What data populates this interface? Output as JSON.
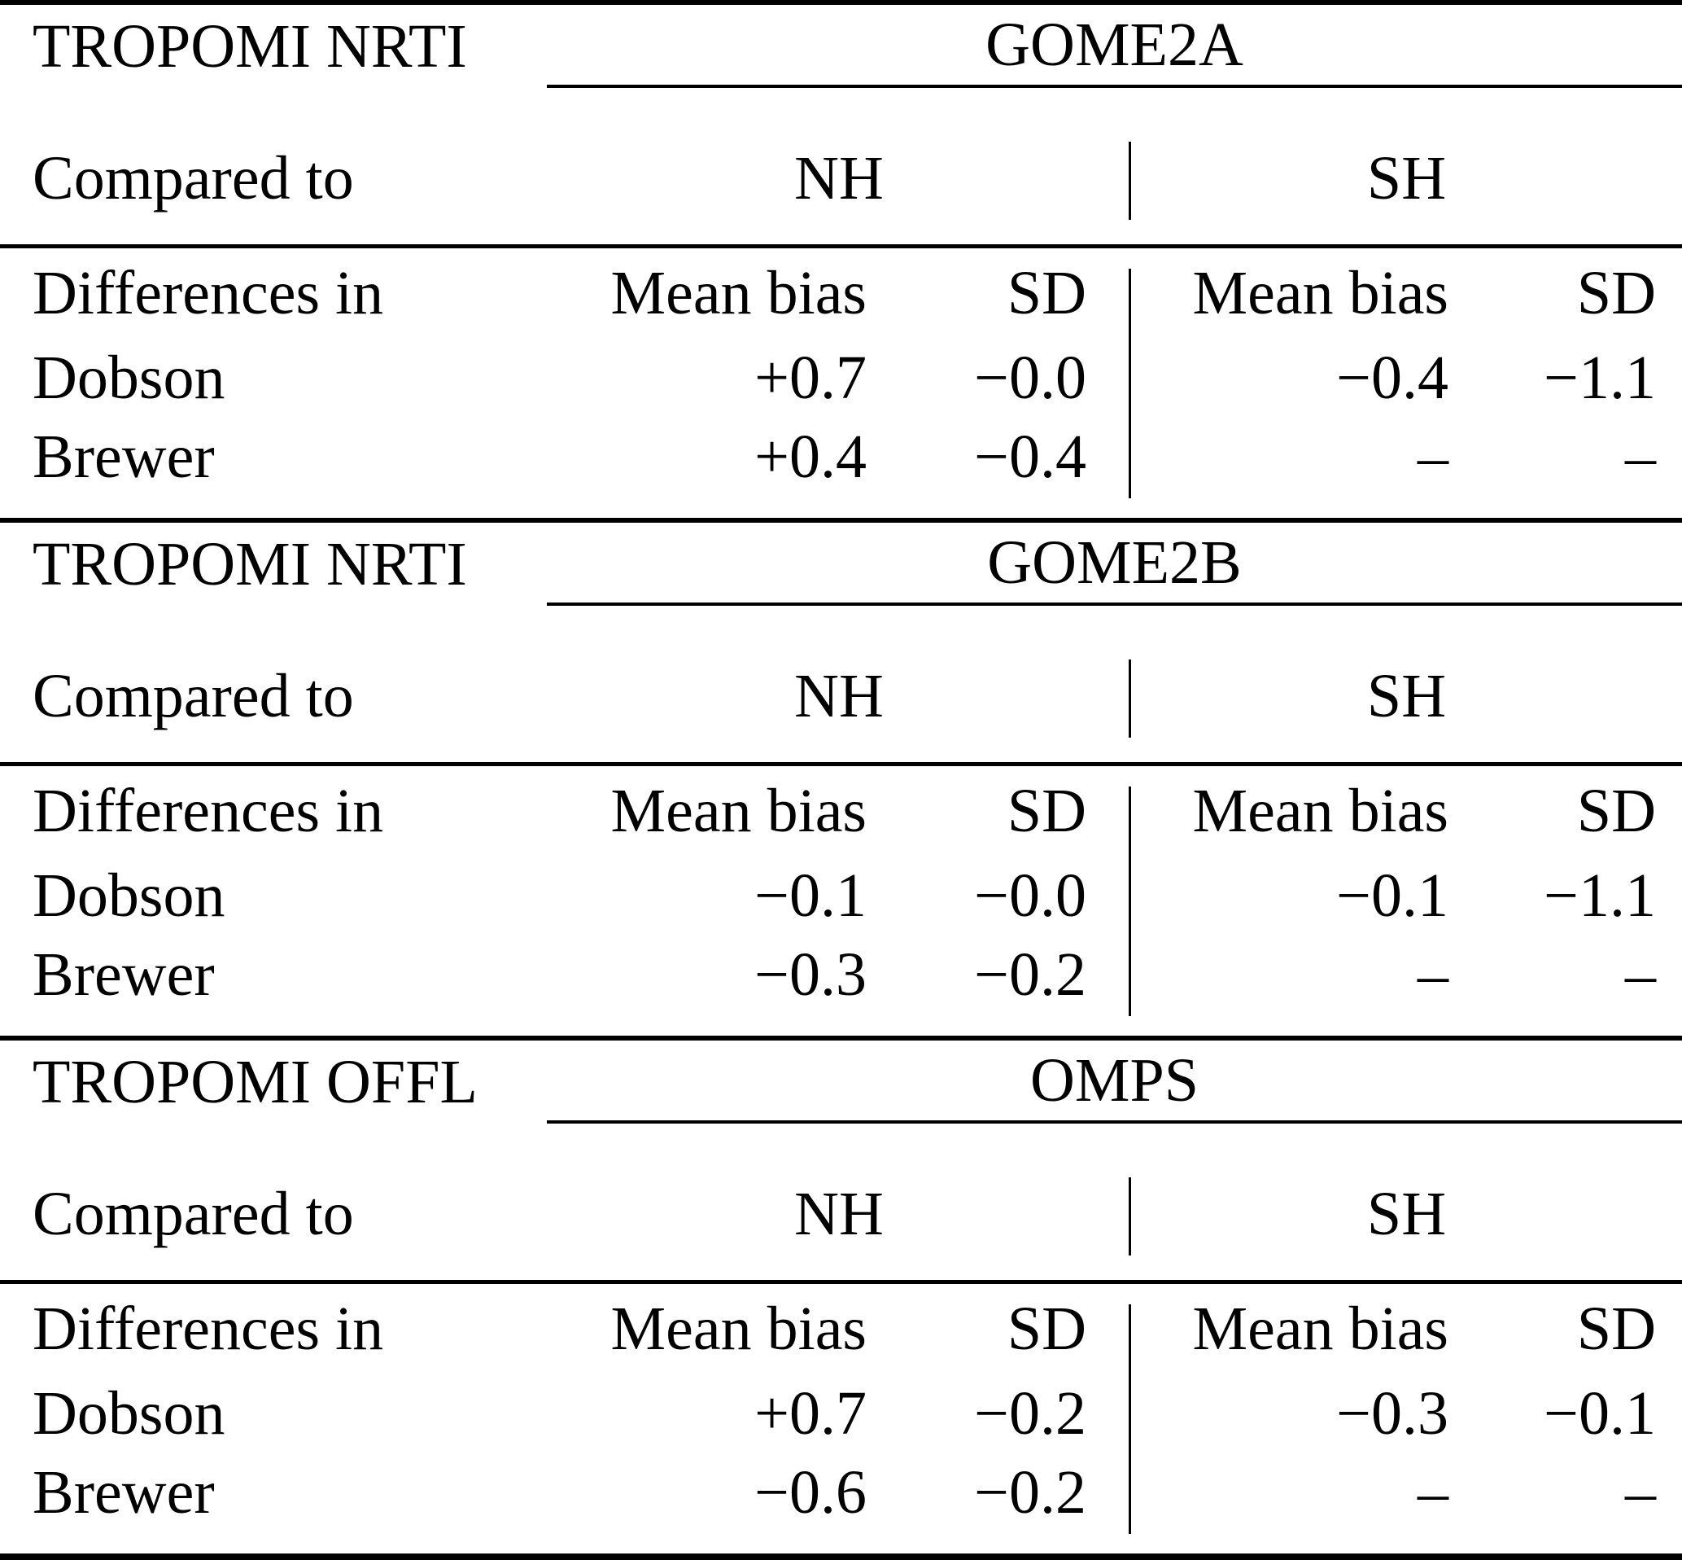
{
  "page": {
    "background": "#ffffff",
    "text_color": "#000000",
    "rule_color": "#000000"
  },
  "sections": [
    {
      "id": "gome2a",
      "left_title": "TROPOMI NRTI",
      "group_title": "GOME2A",
      "compared_to_label": "Compared to",
      "columns": {
        "nh": "NH",
        "sh": "SH",
        "mean_bias": "Mean bias",
        "sd": "SD"
      },
      "differences_label": "Differences in",
      "rows": [
        {
          "label": "Dobson",
          "nh_mean_bias": "+0.7",
          "nh_sd": "−0.0",
          "sh_mean_bias": "−0.4",
          "sh_sd": "−1.1"
        },
        {
          "label": "Brewer",
          "nh_mean_bias": "+0.4",
          "nh_sd": "−0.4",
          "sh_mean_bias": "–",
          "sh_sd": "–"
        }
      ]
    },
    {
      "id": "gome2b",
      "left_title": "TROPOMI NRTI",
      "group_title": "GOME2B",
      "compared_to_label": "Compared to",
      "columns": {
        "nh": "NH",
        "sh": "SH",
        "mean_bias": "Mean bias",
        "sd": "SD"
      },
      "differences_label": "Differences in",
      "rows": [
        {
          "label": "Dobson",
          "nh_mean_bias": "−0.1",
          "nh_sd": "−0.0",
          "sh_mean_bias": "−0.1",
          "sh_sd": "−1.1"
        },
        {
          "label": "Brewer",
          "nh_mean_bias": "−0.3",
          "nh_sd": "−0.2",
          "sh_mean_bias": "–",
          "sh_sd": "–"
        }
      ]
    },
    {
      "id": "omps",
      "left_title": "TROPOMI OFFL",
      "group_title": "OMPS",
      "compared_to_label": "Compared to",
      "columns": {
        "nh": "NH",
        "sh": "SH",
        "mean_bias": "Mean bias",
        "sd": "SD"
      },
      "differences_label": "Differences in",
      "rows": [
        {
          "label": "Dobson",
          "nh_mean_bias": "+0.7",
          "nh_sd": "−0.2",
          "sh_mean_bias": "−0.3",
          "sh_sd": "−0.1"
        },
        {
          "label": "Brewer",
          "nh_mean_bias": "−0.6",
          "nh_sd": "−0.2",
          "sh_mean_bias": "–",
          "sh_sd": "–"
        }
      ]
    }
  ]
}
